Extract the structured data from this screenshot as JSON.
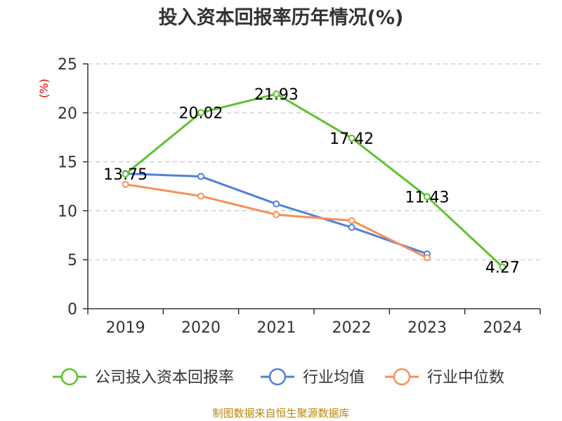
{
  "chart_data": {
    "type": "line",
    "title": "投入资本回报率历年情况(%)",
    "ylabel": "(%)",
    "categories": [
      "2019",
      "2020",
      "2021",
      "2022",
      "2023",
      "2024"
    ],
    "ylim": [
      0,
      25
    ],
    "yticks": [
      0,
      5,
      10,
      15,
      20,
      25
    ],
    "grid": true,
    "legend_position": "bottom",
    "series": [
      {
        "name": "公司投入资本回报率",
        "color": "#5ec22f",
        "values": [
          13.75,
          20.02,
          21.93,
          17.42,
          11.43,
          4.27
        ],
        "labels": [
          "13.75",
          "20.02",
          "21.93",
          "17.42",
          "11.43",
          "4.27"
        ],
        "show_labels": true
      },
      {
        "name": "行业均值",
        "color": "#4f7fd8",
        "values": [
          13.8,
          13.5,
          10.7,
          8.3,
          5.6,
          null
        ],
        "show_labels": false
      },
      {
        "name": "行业中位数",
        "color": "#f5905a",
        "values": [
          12.7,
          11.5,
          9.6,
          9.0,
          5.2,
          null
        ],
        "show_labels": false
      }
    ]
  },
  "footer": {
    "source": "制图数据来自恒生聚源数据库"
  }
}
